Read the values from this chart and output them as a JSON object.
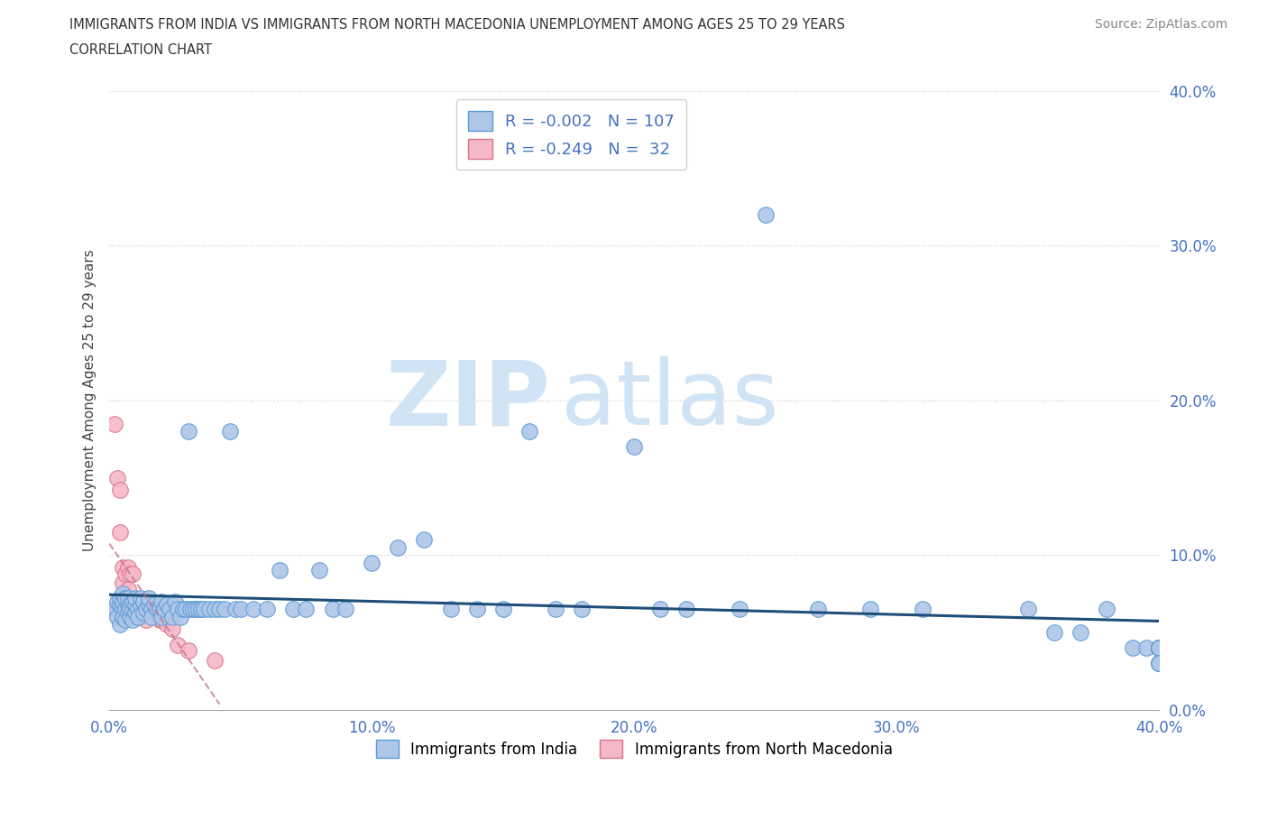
{
  "title_line1": "IMMIGRANTS FROM INDIA VS IMMIGRANTS FROM NORTH MACEDONIA UNEMPLOYMENT AMONG AGES 25 TO 29 YEARS",
  "title_line2": "CORRELATION CHART",
  "source_text": "Source: ZipAtlas.com",
  "ylabel": "Unemployment Among Ages 25 to 29 years",
  "xlim": [
    0.0,
    0.4
  ],
  "ylim": [
    0.0,
    0.4
  ],
  "xticks": [
    0.0,
    0.1,
    0.2,
    0.3,
    0.4
  ],
  "yticks": [
    0.0,
    0.1,
    0.2,
    0.3,
    0.4
  ],
  "xtick_labels": [
    "0.0%",
    "10.0%",
    "20.0%",
    "30.0%",
    "40.0%"
  ],
  "ytick_labels": [
    "0.0%",
    "10.0%",
    "20.0%",
    "30.0%",
    "40.0%"
  ],
  "india_color": "#aec6e8",
  "india_edge_color": "#5b9bd5",
  "india_R": -0.002,
  "india_N": 107,
  "india_line_color": "#1f4e79",
  "macedonia_color": "#f4b8c8",
  "macedonia_edge_color": "#d9748a",
  "macedonia_R": -0.249,
  "macedonia_N": 32,
  "macedonia_line_color": "#c0708a",
  "watermark_top": "ZIP",
  "watermark_bottom": "atlas",
  "watermark_color": "#d0e4f5",
  "legend_label_india": "Immigrants from India",
  "legend_label_macedonia": "Immigrants from North Macedonia",
  "india_x": [
    0.002,
    0.003,
    0.003,
    0.004,
    0.004,
    0.004,
    0.005,
    0.005,
    0.005,
    0.005,
    0.006,
    0.006,
    0.006,
    0.007,
    0.007,
    0.007,
    0.008,
    0.008,
    0.008,
    0.009,
    0.009,
    0.009,
    0.01,
    0.01,
    0.01,
    0.011,
    0.011,
    0.012,
    0.012,
    0.013,
    0.013,
    0.014,
    0.015,
    0.015,
    0.016,
    0.016,
    0.017,
    0.018,
    0.019,
    0.02,
    0.02,
    0.021,
    0.022,
    0.023,
    0.024,
    0.025,
    0.026,
    0.027,
    0.028,
    0.029,
    0.03,
    0.031,
    0.032,
    0.033,
    0.034,
    0.035,
    0.036,
    0.038,
    0.04,
    0.042,
    0.044,
    0.046,
    0.048,
    0.05,
    0.055,
    0.06,
    0.065,
    0.07,
    0.075,
    0.08,
    0.085,
    0.09,
    0.1,
    0.11,
    0.12,
    0.13,
    0.14,
    0.15,
    0.16,
    0.17,
    0.18,
    0.2,
    0.21,
    0.22,
    0.24,
    0.25,
    0.27,
    0.29,
    0.31,
    0.35,
    0.36,
    0.37,
    0.38,
    0.39,
    0.395,
    0.4,
    0.4,
    0.4,
    0.4,
    0.4,
    0.4,
    0.4,
    0.4,
    0.4,
    0.4,
    0.4,
    0.4
  ],
  "india_y": [
    0.065,
    0.07,
    0.06,
    0.068,
    0.055,
    0.072,
    0.065,
    0.06,
    0.07,
    0.075,
    0.065,
    0.058,
    0.072,
    0.063,
    0.068,
    0.072,
    0.06,
    0.068,
    0.065,
    0.065,
    0.07,
    0.058,
    0.063,
    0.068,
    0.072,
    0.065,
    0.06,
    0.068,
    0.072,
    0.063,
    0.07,
    0.065,
    0.068,
    0.072,
    0.065,
    0.06,
    0.068,
    0.065,
    0.065,
    0.07,
    0.06,
    0.065,
    0.068,
    0.065,
    0.06,
    0.07,
    0.065,
    0.06,
    0.065,
    0.065,
    0.18,
    0.065,
    0.065,
    0.065,
    0.065,
    0.065,
    0.065,
    0.065,
    0.065,
    0.065,
    0.065,
    0.18,
    0.065,
    0.065,
    0.065,
    0.065,
    0.09,
    0.065,
    0.065,
    0.09,
    0.065,
    0.065,
    0.095,
    0.105,
    0.11,
    0.065,
    0.065,
    0.065,
    0.18,
    0.065,
    0.065,
    0.17,
    0.065,
    0.065,
    0.065,
    0.32,
    0.065,
    0.065,
    0.065,
    0.065,
    0.05,
    0.05,
    0.065,
    0.04,
    0.04,
    0.04,
    0.04,
    0.04,
    0.03,
    0.04,
    0.04,
    0.04,
    0.04,
    0.04,
    0.03,
    0.03,
    0.03
  ],
  "macedonia_x": [
    0.002,
    0.003,
    0.003,
    0.004,
    0.004,
    0.005,
    0.005,
    0.005,
    0.006,
    0.006,
    0.007,
    0.007,
    0.008,
    0.008,
    0.009,
    0.01,
    0.01,
    0.011,
    0.012,
    0.013,
    0.014,
    0.015,
    0.016,
    0.017,
    0.018,
    0.019,
    0.02,
    0.022,
    0.024,
    0.026,
    0.03,
    0.04
  ],
  "macedonia_y": [
    0.185,
    0.15,
    0.065,
    0.142,
    0.115,
    0.092,
    0.082,
    0.065,
    0.088,
    0.068,
    0.092,
    0.078,
    0.088,
    0.065,
    0.088,
    0.07,
    0.063,
    0.063,
    0.068,
    0.063,
    0.058,
    0.068,
    0.068,
    0.068,
    0.063,
    0.058,
    0.058,
    0.055,
    0.052,
    0.042,
    0.038,
    0.032
  ]
}
